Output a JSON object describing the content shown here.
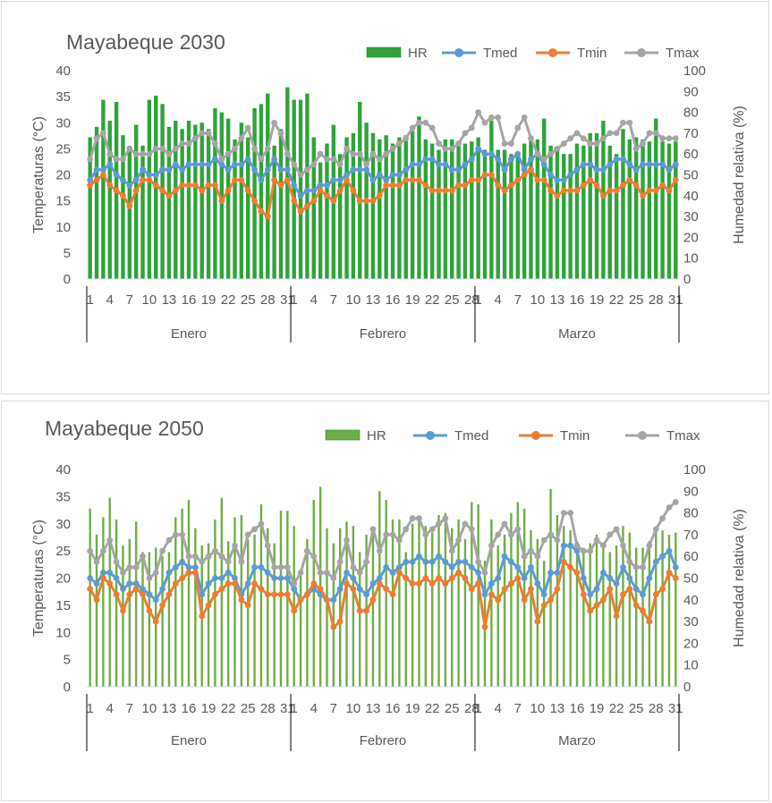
{
  "chart_data": [
    {
      "type": "bar+line",
      "title": "Mayabeque 2030",
      "ylabel": "Temperaturas (°C)",
      "y2label": "Humedad relativa (%)",
      "ylim": [
        0,
        40
      ],
      "y2lim": [
        0,
        100
      ],
      "yticks": [
        0,
        5,
        10,
        15,
        20,
        25,
        30,
        35,
        40
      ],
      "y2ticks": [
        0,
        10,
        20,
        30,
        40,
        50,
        60,
        70,
        80,
        90,
        100
      ],
      "months": [
        {
          "name": "Enero",
          "days": 31
        },
        {
          "name": "Febrero",
          "days": 28
        },
        {
          "name": "Marzo",
          "days": 31
        }
      ],
      "legend_position": "top-right",
      "grid": false,
      "series": [
        {
          "name": "HR",
          "kind": "bar",
          "axis": "right",
          "color": "#2fa33a",
          "values": [
            68,
            73,
            86,
            76,
            85,
            69,
            64,
            74,
            64,
            86,
            88,
            84,
            73,
            76,
            72,
            76,
            74,
            75,
            72,
            82,
            80,
            77,
            67,
            75,
            68,
            82,
            84,
            89,
            64,
            72,
            92,
            86,
            86,
            89,
            68,
            56,
            65,
            74,
            60,
            68,
            70,
            85,
            75,
            70,
            67,
            69,
            65,
            68,
            69,
            71,
            78,
            67,
            65,
            62,
            67,
            67,
            66,
            65,
            66,
            68,
            62,
            76,
            62,
            62,
            60,
            61,
            65,
            67,
            67,
            77,
            64,
            62,
            60,
            60,
            65,
            64,
            70,
            70,
            76,
            64,
            60,
            72,
            67,
            68,
            67,
            66,
            77,
            66,
            65,
            66
          ]
        },
        {
          "name": "Tmed",
          "kind": "line",
          "axis": "left",
          "color": "#5b9bd5",
          "values": [
            19,
            21,
            21,
            22,
            20,
            19,
            18,
            19,
            21,
            20,
            20,
            21,
            21,
            22,
            21,
            22,
            22,
            22,
            22,
            23,
            22,
            21,
            22,
            22,
            23,
            21,
            19,
            21,
            23,
            21,
            21,
            18,
            16,
            17,
            17,
            18,
            18,
            19,
            19,
            20,
            21,
            21,
            21,
            19,
            20,
            19,
            20,
            20,
            21,
            22,
            22,
            23,
            23,
            22,
            22,
            21,
            21,
            22,
            23,
            25,
            24,
            24,
            23,
            21,
            23,
            24,
            21,
            23,
            24,
            22,
            20,
            19,
            19,
            20,
            21,
            22,
            22,
            21,
            21,
            22,
            23,
            23,
            22,
            21,
            22,
            22,
            22,
            22,
            21,
            22
          ]
        },
        {
          "name": "Tmin",
          "kind": "line",
          "axis": "left",
          "color": "#ed7d31",
          "values": [
            18,
            19,
            20,
            18,
            17,
            16,
            14,
            17,
            19,
            19,
            18,
            17,
            16,
            17,
            18,
            18,
            18,
            17,
            18,
            18,
            15,
            17,
            19,
            19,
            17,
            15,
            13,
            12,
            19,
            18,
            19,
            15,
            13,
            14,
            15,
            17,
            16,
            15,
            17,
            19,
            17,
            15,
            15,
            15,
            16,
            18,
            18,
            18,
            19,
            19,
            19,
            18,
            17,
            17,
            17,
            17,
            18,
            18,
            19,
            19,
            20,
            20,
            18,
            17,
            18,
            19,
            20,
            21,
            19,
            19,
            17,
            16,
            17,
            17,
            17,
            18,
            19,
            18,
            16,
            17,
            17,
            18,
            19,
            18,
            16,
            17,
            17,
            18,
            17,
            19
          ]
        },
        {
          "name": "Tmax",
          "kind": "line",
          "axis": "left",
          "color": "#a5a5a5",
          "values": [
            23,
            27,
            28,
            24,
            23,
            23,
            25,
            24,
            24,
            24,
            25,
            25,
            24,
            25,
            26,
            26,
            27,
            28,
            28,
            26,
            23,
            24,
            25,
            27,
            29,
            25,
            23,
            25,
            30,
            28,
            24,
            22,
            20,
            21,
            22,
            24,
            23,
            23,
            22,
            25,
            24,
            24,
            22,
            24,
            23,
            24,
            25,
            26,
            27,
            29,
            30,
            30,
            29,
            26,
            25,
            25,
            26,
            28,
            29,
            32,
            30,
            31,
            31,
            26,
            26,
            29,
            31,
            27,
            24,
            23,
            24,
            25,
            26,
            27,
            28,
            27,
            26,
            26,
            27,
            28,
            28,
            30,
            30,
            25,
            26,
            28,
            28,
            27,
            27,
            27
          ]
        }
      ]
    },
    {
      "type": "bar+line",
      "title": "Mayabeque 2050",
      "ylabel": "Temperaturas (°C)",
      "y2label": "Humedad relativa (%)",
      "ylim": [
        0,
        40
      ],
      "y2lim": [
        0,
        100
      ],
      "yticks": [
        0,
        5,
        10,
        15,
        20,
        25,
        30,
        35,
        40
      ],
      "y2ticks": [
        0,
        10,
        20,
        30,
        40,
        50,
        60,
        70,
        80,
        90,
        100
      ],
      "months": [
        {
          "name": "Enero",
          "days": 31
        },
        {
          "name": "Febrero",
          "days": 28
        },
        {
          "name": "Marzo",
          "days": 31
        }
      ],
      "legend_position": "top-right",
      "grid": false,
      "series": [
        {
          "name": "HR",
          "kind": "bar",
          "axis": "right",
          "color": "#70ad47",
          "values": [
            82,
            70,
            78,
            87,
            77,
            65,
            68,
            76,
            62,
            62,
            64,
            60,
            62,
            78,
            82,
            86,
            73,
            65,
            66,
            77,
            87,
            67,
            78,
            79,
            68,
            70,
            84,
            73,
            66,
            81,
            81,
            74,
            51,
            68,
            86,
            92,
            73,
            66,
            73,
            76,
            74,
            62,
            70,
            70,
            90,
            86,
            77,
            77,
            62,
            75,
            77,
            74,
            71,
            79,
            80,
            73,
            77,
            68,
            85,
            84,
            58,
            77,
            65,
            70,
            80,
            85,
            82,
            72,
            68,
            58,
            91,
            79,
            74,
            72,
            67,
            64,
            66,
            70,
            66,
            62,
            65,
            74,
            71,
            64,
            64,
            67,
            72,
            72,
            70,
            71
          ]
        },
        {
          "name": "Tmed",
          "kind": "line",
          "axis": "left",
          "color": "#5b9bd5",
          "values": [
            20,
            19,
            21,
            21,
            20,
            18,
            19,
            19,
            18,
            17,
            16,
            18,
            21,
            22,
            23,
            22,
            22,
            17,
            19,
            20,
            20,
            21,
            20,
            17,
            19,
            22,
            22,
            21,
            20,
            20,
            20,
            18,
            16,
            17,
            18,
            17,
            16,
            16,
            18,
            21,
            20,
            18,
            17,
            19,
            20,
            22,
            21,
            22,
            23,
            23,
            24,
            23,
            23,
            24,
            23,
            22,
            23,
            23,
            22,
            21,
            17,
            19,
            20,
            24,
            23,
            22,
            20,
            22,
            19,
            17,
            21,
            21,
            26,
            26,
            25,
            20,
            17,
            18,
            21,
            20,
            19,
            22,
            20,
            18,
            17,
            20,
            23,
            24,
            25,
            22
          ]
        },
        {
          "name": "Tmin",
          "kind": "line",
          "axis": "left",
          "color": "#ed7d31",
          "values": [
            18,
            16,
            20,
            19,
            17,
            14,
            17,
            18,
            17,
            14,
            12,
            15,
            17,
            19,
            20,
            21,
            21,
            13,
            15,
            17,
            18,
            19,
            19,
            16,
            15,
            19,
            18,
            17,
            17,
            17,
            17,
            14,
            16,
            17,
            19,
            18,
            16,
            11,
            12,
            19,
            18,
            14,
            14,
            16,
            19,
            18,
            17,
            21,
            20,
            19,
            19,
            20,
            19,
            20,
            19,
            20,
            21,
            20,
            18,
            19,
            11,
            17,
            16,
            18,
            19,
            20,
            16,
            18,
            12,
            15,
            16,
            18,
            23,
            22,
            21,
            17,
            14,
            15,
            16,
            18,
            13,
            17,
            18,
            15,
            14,
            12,
            17,
            18,
            21,
            20
          ]
        },
        {
          "name": "Tmax",
          "kind": "line",
          "axis": "left",
          "color": "#a5a5a5",
          "values": [
            25,
            23,
            25,
            27,
            23,
            21,
            22,
            22,
            24,
            20,
            21,
            25,
            27,
            28,
            28,
            24,
            24,
            23,
            24,
            25,
            24,
            23,
            26,
            23,
            28,
            29,
            30,
            26,
            22,
            22,
            22,
            19,
            21,
            25,
            24,
            21,
            21,
            20,
            23,
            27,
            22,
            21,
            23,
            29,
            25,
            28,
            28,
            27,
            29,
            31,
            31,
            28,
            29,
            30,
            31,
            25,
            27,
            30,
            29,
            23,
            21,
            26,
            28,
            30,
            28,
            29,
            24,
            25,
            24,
            27,
            28,
            27,
            32,
            32,
            26,
            25,
            25,
            27,
            26,
            28,
            29,
            26,
            23,
            22,
            22,
            26,
            29,
            31,
            33,
            34
          ]
        }
      ]
    }
  ]
}
